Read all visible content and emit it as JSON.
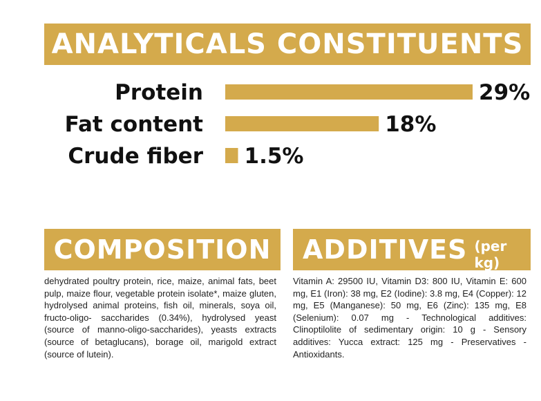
{
  "analytics": {
    "title": "ANALYTICALS CONSTITUENTS"
  },
  "chart_data": {
    "type": "bar",
    "orientation": "horizontal",
    "categories": [
      "Protein",
      "Fat content",
      "Crude fiber"
    ],
    "values": [
      29,
      18,
      1.5
    ],
    "value_labels": [
      "29%",
      "18%",
      "1.5%"
    ],
    "unit": "%",
    "grid": false,
    "bar_color": "#d4aa4c"
  },
  "composition": {
    "title": "COMPOSITION",
    "text": "dehydrated poultry protein, rice, maize, animal fats, beet pulp, maize flour, vegetable protein isolate*, maize gluten, hydrolysed animal proteins, fish oil, minerals, soya oil, fructo-oligo- saccharides (0.34%), hydrolysed yeast (source of manno-oligo-saccharides), yeasts extracts (source of betaglucans), borage oil, marigold extract (source of lutein)."
  },
  "additives": {
    "title": "ADDITIVES",
    "title_suffix": "(per kg)",
    "text": "Vitamin A: 29500 IU, Vitamin D3: 800 IU, Vitamin E: 600 mg, E1 (Iron): 38 mg, E2 (Iodine): 3.8 mg, E4 (Copper): 12 mg, E5 (Manganese): 50 mg, E6 (Zinc): 135 mg, E8 (Selenium): 0.07 mg - Technological additives: Clinoptilolite of sedimentary origin: 10 g - Sensory additives: Yucca extract: 125 mg - Preservatives - Antioxidants."
  },
  "colors": {
    "accent": "#d4aa4c",
    "text": "#111111",
    "background": "#ffffff"
  }
}
